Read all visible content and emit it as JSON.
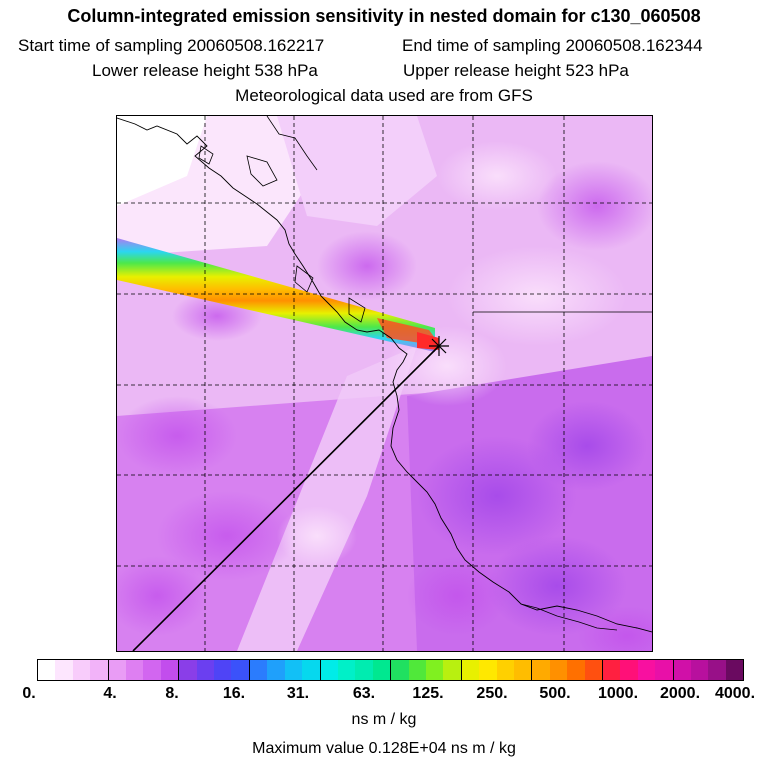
{
  "header": {
    "title": "Column-integrated emission sensitivity in nested domain for c130_060508",
    "start_label": "Start time of sampling 20060508.162217",
    "end_label": "End time of sampling 20060508.162344",
    "lower_label": "Lower release height  538 hPa",
    "upper_label": "Upper release height  523 hPa",
    "met_label": "Meteorological data used are from GFS"
  },
  "colorbar": {
    "tick_labels": [
      "0.",
      "4.",
      "8.",
      "16.",
      "31.",
      "63.",
      "125.",
      "250.",
      "500.",
      "1000.",
      "2000.",
      "4000."
    ],
    "colors": [
      "#ffffff",
      "#fde6fe",
      "#f8ccfb",
      "#f2b3f9",
      "#e99cf5",
      "#de7ff2",
      "#d266f0",
      "#c24ded",
      "#8a3ee8",
      "#6b3ff0",
      "#4f44f6",
      "#3b52fa",
      "#2b7cfd",
      "#1fa0fb",
      "#12c0f6",
      "#06d8ee",
      "#00ece8",
      "#00f0c8",
      "#00ecb0",
      "#00e890",
      "#20e060",
      "#50e83a",
      "#80f020",
      "#b8f010",
      "#e8f000",
      "#ffe800",
      "#ffd000",
      "#ffbd00",
      "#ffaa00",
      "#ff9000",
      "#ff7000",
      "#ff5010",
      "#ff2040",
      "#ff1078",
      "#f810a0",
      "#e810a8",
      "#d010a8",
      "#b8109e",
      "#981088",
      "#6a0a60"
    ],
    "units": "ns m / kg",
    "max_label": "Maximum value  0.128E+04 ns m / kg"
  }
}
